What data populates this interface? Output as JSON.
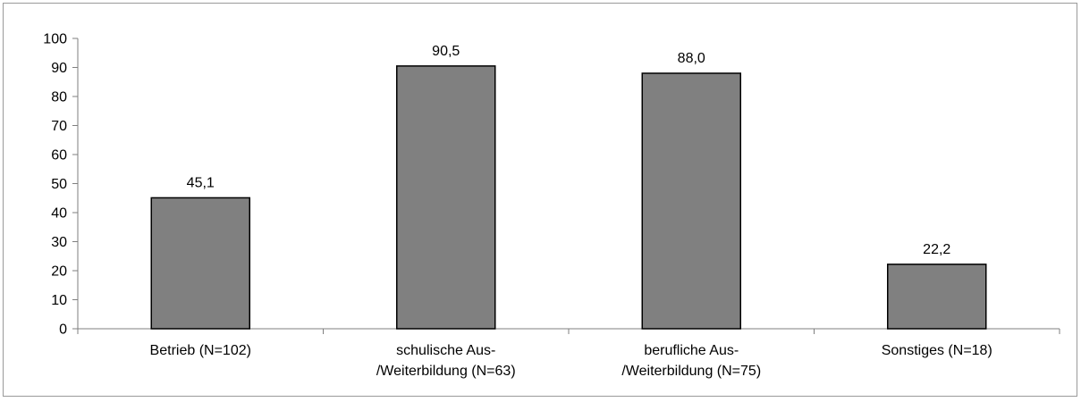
{
  "chart_data": {
    "type": "bar",
    "title": "",
    "xlabel": "",
    "ylabel": "",
    "categories": [
      [
        "Betrieb (N=102)"
      ],
      [
        "schulische Aus-",
        "/Weiterbildung (N=63)"
      ],
      [
        "berufliche Aus-",
        "/Weiterbildung (N=75)"
      ],
      [
        "Sonstiges (N=18)"
      ]
    ],
    "values": [
      45.1,
      90.5,
      88.0,
      22.2
    ],
    "value_labels": [
      "45,1",
      "90,5",
      "88,0",
      "22,2"
    ],
    "ylim": [
      0,
      100
    ],
    "yticks": [
      0,
      10,
      20,
      30,
      40,
      50,
      60,
      70,
      80,
      90,
      100
    ],
    "grid": false,
    "legend": "none",
    "bar_color": "#808080",
    "bar_edge_color": "#000000"
  }
}
